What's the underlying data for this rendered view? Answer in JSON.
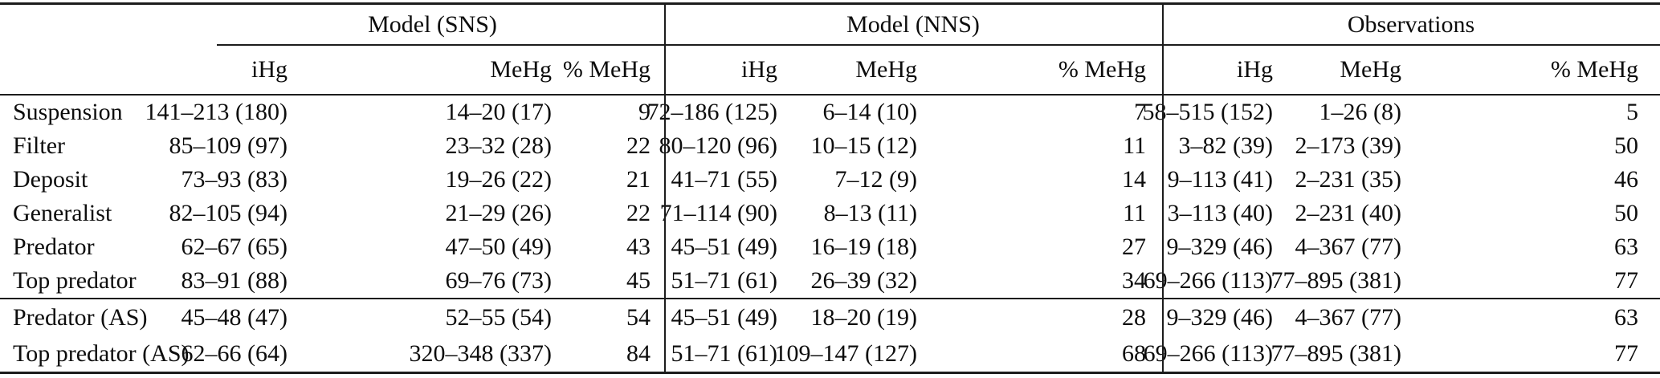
{
  "table": {
    "groups": [
      {
        "label": "Model (SNS)"
      },
      {
        "label": "Model (NNS)"
      },
      {
        "label": "Observations"
      }
    ],
    "sub_headers": [
      "iHg",
      "MeHg",
      "% MeHg"
    ],
    "rows": [
      {
        "label": "Suspension",
        "cells": [
          "141–213 (180)",
          "14–20 (17)",
          "9",
          "72–186 (125)",
          "6–14 (10)",
          "7",
          "58–515 (152)",
          "1–26 (8)",
          "5"
        ]
      },
      {
        "label": "Filter",
        "cells": [
          "85–109 (97)",
          "23–32 (28)",
          "22",
          "80–120 (96)",
          "10–15 (12)",
          "11",
          "3–82 (39)",
          "2–173 (39)",
          "50"
        ]
      },
      {
        "label": "Deposit",
        "cells": [
          "73–93 (83)",
          "19–26 (22)",
          "21",
          "41–71 (55)",
          "7–12 (9)",
          "14",
          "9–113 (41)",
          "2–231 (35)",
          "46"
        ]
      },
      {
        "label": "Generalist",
        "cells": [
          "82–105 (94)",
          "21–29 (26)",
          "22",
          "71–114 (90)",
          "8–13 (11)",
          "11",
          "3–113 (40)",
          "2–231 (40)",
          "50"
        ]
      },
      {
        "label": "Predator",
        "cells": [
          "62–67 (65)",
          "47–50 (49)",
          "43",
          "45–51 (49)",
          "16–19 (18)",
          "27",
          "9–329 (46)",
          "4–367 (77)",
          "63"
        ]
      },
      {
        "label": "Top predator",
        "cells": [
          "83–91 (88)",
          "69–76 (73)",
          "45",
          "51–71 (61)",
          "26–39 (32)",
          "34",
          "69–266 (113)",
          "77–895 (381)",
          "77"
        ]
      },
      {
        "label": "Predator (AS)",
        "cells": [
          "45–48 (47)",
          "52–55 (54)",
          "54",
          "45–51 (49)",
          "18–20 (19)",
          "28",
          "9–329 (46)",
          "4–367 (77)",
          "63"
        ]
      },
      {
        "label": "Top predator (AS)",
        "cells": [
          "62–66 (64)",
          "320–348 (337)",
          "84",
          "51–71 (61)",
          "109–147 (127)",
          "68",
          "69–266 (113)",
          "77–895 (381)",
          "77"
        ]
      }
    ]
  },
  "colors": {
    "text": "#0d0d0d",
    "rule": "#1c1c1c",
    "background": "#ffffff"
  }
}
